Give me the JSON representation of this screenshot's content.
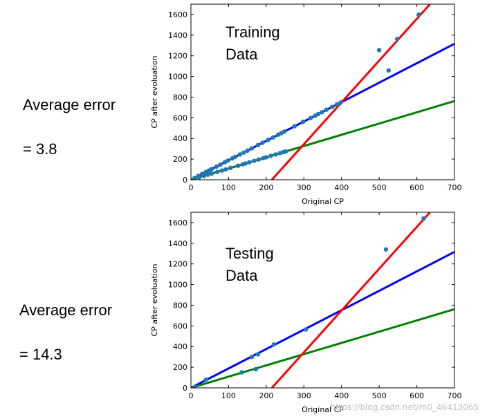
{
  "captions": [
    {
      "line1": "Average error",
      "line2": "= 3.8"
    },
    {
      "line1": "Average error",
      "line2": "= 14.3"
    }
  ],
  "watermark": "https://blog.csdn.net/m0_46413065",
  "chart_data": [
    {
      "type": "scatter",
      "title_lines": [
        "Training",
        "Data"
      ],
      "xlabel": "Original CP",
      "ylabel": "CP after evoluation",
      "xlim": [
        0,
        700
      ],
      "ylim": [
        0,
        1700
      ],
      "xticks": [
        0,
        100,
        200,
        300,
        400,
        500,
        600,
        700
      ],
      "yticks": [
        0,
        200,
        400,
        600,
        800,
        1000,
        1200,
        1400,
        1600
      ],
      "grid": false,
      "point_color": "#1f77b4",
      "lines": [
        {
          "color": "#0000ff",
          "x": [
            0,
            700
          ],
          "y": [
            0,
            1316
          ]
        },
        {
          "color": "#008000",
          "x": [
            0,
            700
          ],
          "y": [
            0,
            762
          ]
        },
        {
          "color": "#ff0000",
          "x": [
            215,
            635
          ],
          "y": [
            0,
            1700
          ]
        }
      ],
      "points": [
        [
          10,
          19
        ],
        [
          20,
          38
        ],
        [
          30,
          57
        ],
        [
          40,
          76
        ],
        [
          48,
          90
        ],
        [
          55,
          104
        ],
        [
          68,
          128
        ],
        [
          78,
          146
        ],
        [
          90,
          170
        ],
        [
          98,
          185
        ],
        [
          110,
          207
        ],
        [
          118,
          222
        ],
        [
          130,
          245
        ],
        [
          140,
          263
        ],
        [
          150,
          282
        ],
        [
          162,
          305
        ],
        [
          178,
          335
        ],
        [
          190,
          358
        ],
        [
          205,
          386
        ],
        [
          218,
          410
        ],
        [
          232,
          437
        ],
        [
          240,
          451
        ],
        [
          248,
          466
        ],
        [
          275,
          518
        ],
        [
          298,
          562
        ],
        [
          318,
          598
        ],
        [
          330,
          620
        ],
        [
          338,
          636
        ],
        [
          348,
          654
        ],
        [
          360,
          678
        ],
        [
          375,
          705
        ],
        [
          388,
          730
        ],
        [
          398,
          748
        ],
        [
          10,
          11
        ],
        [
          22,
          24
        ],
        [
          35,
          38
        ],
        [
          45,
          49
        ],
        [
          55,
          60
        ],
        [
          70,
          76
        ],
        [
          82,
          89
        ],
        [
          92,
          100
        ],
        [
          105,
          114
        ],
        [
          125,
          136
        ],
        [
          138,
          150
        ],
        [
          145,
          158
        ],
        [
          155,
          169
        ],
        [
          168,
          183
        ],
        [
          180,
          196
        ],
        [
          192,
          209
        ],
        [
          200,
          218
        ],
        [
          212,
          231
        ],
        [
          225,
          245
        ],
        [
          236,
          257
        ],
        [
          245,
          267
        ],
        [
          252,
          274
        ],
        [
          500,
          1255
        ],
        [
          525,
          1058
        ],
        [
          548,
          1362
        ],
        [
          605,
          1598
        ]
      ]
    },
    {
      "type": "scatter",
      "title_lines": [
        "Testing",
        "Data"
      ],
      "xlabel": "Original CP",
      "ylabel": "CP after evoluation",
      "xlim": [
        0,
        700
      ],
      "ylim": [
        0,
        1700
      ],
      "xticks": [
        0,
        100,
        200,
        300,
        400,
        500,
        600,
        700
      ],
      "yticks": [
        0,
        200,
        400,
        600,
        800,
        1000,
        1200,
        1400,
        1600
      ],
      "grid": false,
      "point_color": "#1f77b4",
      "lines": [
        {
          "color": "#0000ff",
          "x": [
            0,
            700
          ],
          "y": [
            0,
            1316
          ]
        },
        {
          "color": "#008000",
          "x": [
            0,
            700
          ],
          "y": [
            0,
            762
          ]
        },
        {
          "color": "#ff0000",
          "x": [
            215,
            635
          ],
          "y": [
            0,
            1700
          ]
        }
      ],
      "points": [
        [
          10,
          10
        ],
        [
          40,
          80
        ],
        [
          135,
          150
        ],
        [
          162,
          300
        ],
        [
          172,
          180
        ],
        [
          178,
          325
        ],
        [
          220,
          420
        ],
        [
          305,
          565
        ],
        [
          518,
          1340
        ],
        [
          618,
          1640
        ]
      ]
    }
  ]
}
